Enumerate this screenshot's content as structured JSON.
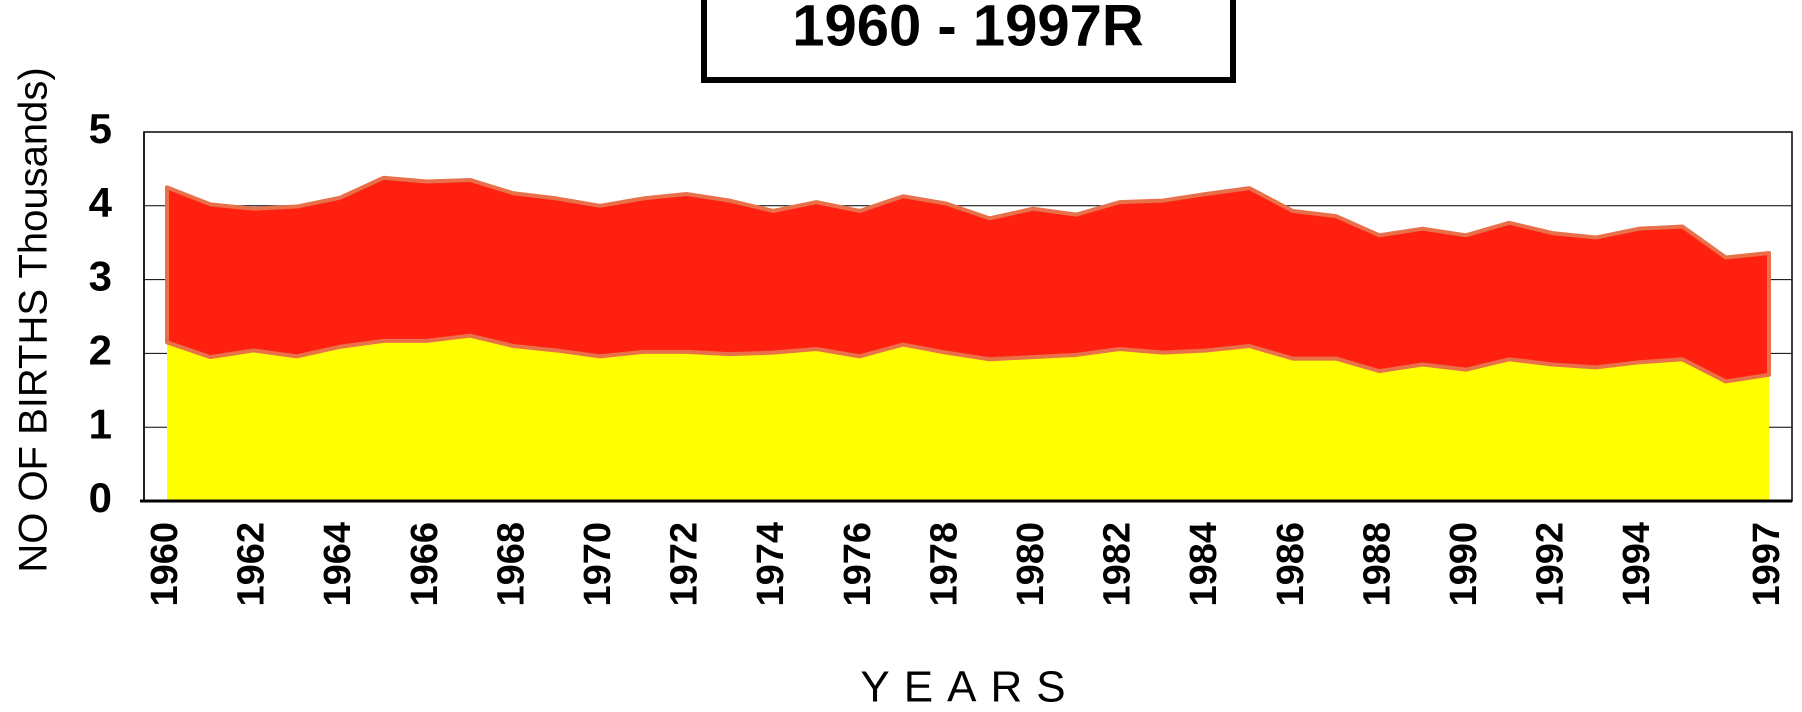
{
  "chart_data": {
    "type": "stacked-area",
    "title": "1960 - 1997R",
    "x_label": "YEARS",
    "y_label": "NO OF BIRTHS Thousands)",
    "categories": [
      "1960",
      null,
      "1962",
      null,
      "1964",
      null,
      "1966",
      null,
      "1968",
      null,
      "1970",
      null,
      "1972",
      null,
      "1974",
      null,
      "1976",
      null,
      "1978",
      null,
      "1980",
      null,
      "1982",
      null,
      "1984",
      null,
      "1986",
      null,
      "1988",
      null,
      "1990",
      null,
      "1992",
      null,
      "1994",
      null,
      null,
      "1997"
    ],
    "series": [
      {
        "color": "#ffff00",
        "values": [
          2.15,
          1.95,
          2.04,
          1.96,
          2.09,
          2.17,
          2.17,
          2.24,
          2.1,
          2.04,
          1.96,
          2.02,
          2.02,
          1.99,
          2.01,
          2.06,
          1.96,
          2.12,
          2.01,
          1.92,
          1.95,
          1.98,
          2.06,
          2.01,
          2.04,
          2.1,
          1.93,
          1.93,
          1.76,
          1.85,
          1.78,
          1.92,
          1.85,
          1.81,
          1.88,
          1.92,
          1.62,
          1.71
        ]
      },
      {
        "color": "#ff2010",
        "values": [
          2.1,
          2.07,
          1.92,
          2.03,
          2.02,
          2.21,
          2.16,
          2.11,
          2.07,
          2.06,
          2.04,
          2.08,
          2.14,
          2.08,
          1.92,
          1.99,
          1.97,
          2.01,
          2.02,
          1.91,
          2.01,
          1.9,
          1.99,
          2.06,
          2.12,
          2.14,
          2.0,
          1.93,
          1.84,
          1.84,
          1.82,
          1.85,
          1.78,
          1.76,
          1.81,
          1.8,
          1.68,
          1.65
        ]
      }
    ],
    "ylim": [
      0,
      5
    ],
    "yticks": [
      0,
      1,
      2,
      3,
      4,
      5
    ],
    "grid": true
  }
}
